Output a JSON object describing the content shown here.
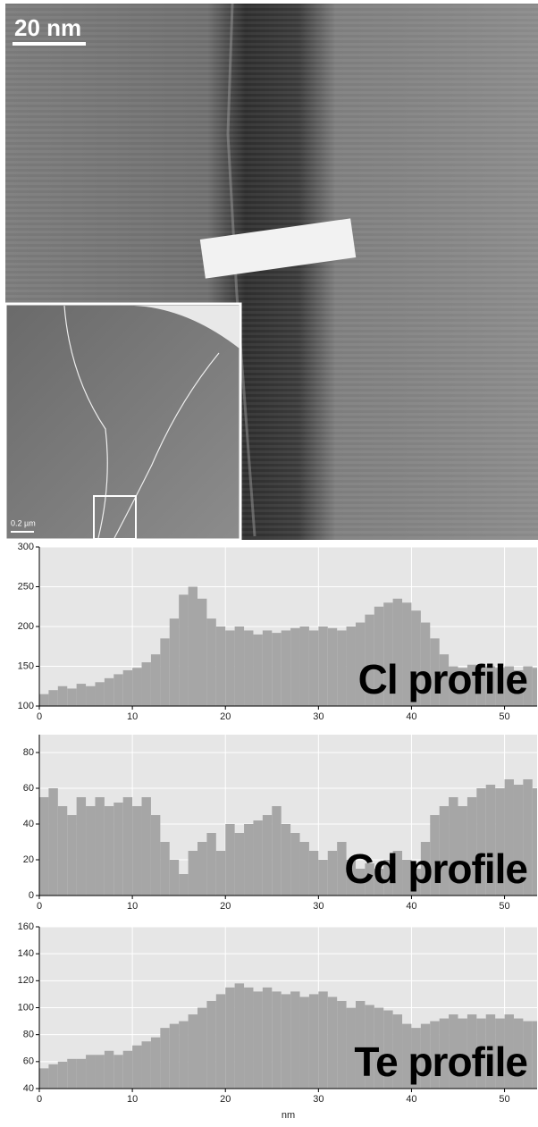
{
  "image": {
    "scale_bar": "20 nm",
    "inset_scale_bar": "0.2 µm"
  },
  "chart_data": [
    {
      "type": "bar",
      "annotation": "Cl profile",
      "color": "#a6a6a6",
      "grid": true,
      "x": [
        0,
        1,
        2,
        3,
        4,
        5,
        6,
        7,
        8,
        9,
        10,
        11,
        12,
        13,
        14,
        15,
        16,
        17,
        18,
        19,
        20,
        21,
        22,
        23,
        24,
        25,
        26,
        27,
        28,
        29,
        30,
        31,
        32,
        33,
        34,
        35,
        36,
        37,
        38,
        39,
        40,
        41,
        42,
        43,
        44,
        45,
        46,
        47,
        48,
        49,
        50,
        51,
        52,
        53
      ],
      "values": [
        115,
        120,
        125,
        122,
        128,
        125,
        130,
        135,
        140,
        145,
        148,
        155,
        165,
        185,
        210,
        240,
        250,
        235,
        210,
        200,
        195,
        200,
        195,
        190,
        195,
        192,
        195,
        198,
        200,
        195,
        200,
        198,
        195,
        200,
        205,
        215,
        225,
        230,
        235,
        230,
        220,
        205,
        185,
        165,
        150,
        148,
        152,
        150,
        150,
        148,
        150,
        145,
        150,
        148
      ],
      "xlim": [
        0,
        53.5
      ],
      "xticks": [
        0,
        10,
        20,
        30,
        40,
        50
      ],
      "ylim": [
        100,
        300
      ],
      "yticks": [
        100,
        150,
        200,
        250,
        300
      ]
    },
    {
      "type": "bar",
      "annotation": "Cd profile",
      "color": "#a6a6a6",
      "grid": true,
      "x": [
        0,
        1,
        2,
        3,
        4,
        5,
        6,
        7,
        8,
        9,
        10,
        11,
        12,
        13,
        14,
        15,
        16,
        17,
        18,
        19,
        20,
        21,
        22,
        23,
        24,
        25,
        26,
        27,
        28,
        29,
        30,
        31,
        32,
        33,
        34,
        35,
        36,
        37,
        38,
        39,
        40,
        41,
        42,
        43,
        44,
        45,
        46,
        47,
        48,
        49,
        50,
        51,
        52,
        53
      ],
      "values": [
        55,
        60,
        50,
        45,
        55,
        50,
        55,
        50,
        52,
        55,
        50,
        55,
        45,
        30,
        20,
        12,
        25,
        30,
        35,
        25,
        40,
        35,
        40,
        42,
        45,
        50,
        40,
        35,
        30,
        25,
        20,
        25,
        30,
        20,
        15,
        18,
        15,
        20,
        25,
        20,
        15,
        30,
        45,
        50,
        55,
        50,
        55,
        60,
        62,
        60,
        65,
        62,
        65,
        60
      ],
      "xlim": [
        0,
        53.5
      ],
      "xticks": [
        0,
        10,
        20,
        30,
        40,
        50
      ],
      "ylim": [
        0,
        90
      ],
      "yticks": [
        0,
        20,
        40,
        60,
        80
      ]
    },
    {
      "type": "bar",
      "annotation": "Te profile",
      "color": "#a6a6a6",
      "grid": true,
      "xlabel": "nm",
      "x": [
        0,
        1,
        2,
        3,
        4,
        5,
        6,
        7,
        8,
        9,
        10,
        11,
        12,
        13,
        14,
        15,
        16,
        17,
        18,
        19,
        20,
        21,
        22,
        23,
        24,
        25,
        26,
        27,
        28,
        29,
        30,
        31,
        32,
        33,
        34,
        35,
        36,
        37,
        38,
        39,
        40,
        41,
        42,
        43,
        44,
        45,
        46,
        47,
        48,
        49,
        50,
        51,
        52,
        53
      ],
      "values": [
        55,
        58,
        60,
        62,
        62,
        65,
        65,
        68,
        65,
        68,
        72,
        75,
        78,
        85,
        88,
        90,
        95,
        100,
        105,
        110,
        115,
        118,
        115,
        112,
        115,
        112,
        110,
        112,
        108,
        110,
        112,
        108,
        105,
        100,
        105,
        102,
        100,
        98,
        95,
        88,
        85,
        88,
        90,
        92,
        95,
        92,
        95,
        92,
        95,
        92,
        95,
        92,
        90,
        90
      ],
      "xlim": [
        0,
        53.5
      ],
      "xticks": [
        0,
        10,
        20,
        30,
        40,
        50
      ],
      "ylim": [
        40,
        160
      ],
      "yticks": [
        40,
        60,
        80,
        100,
        120,
        140,
        160
      ]
    }
  ]
}
